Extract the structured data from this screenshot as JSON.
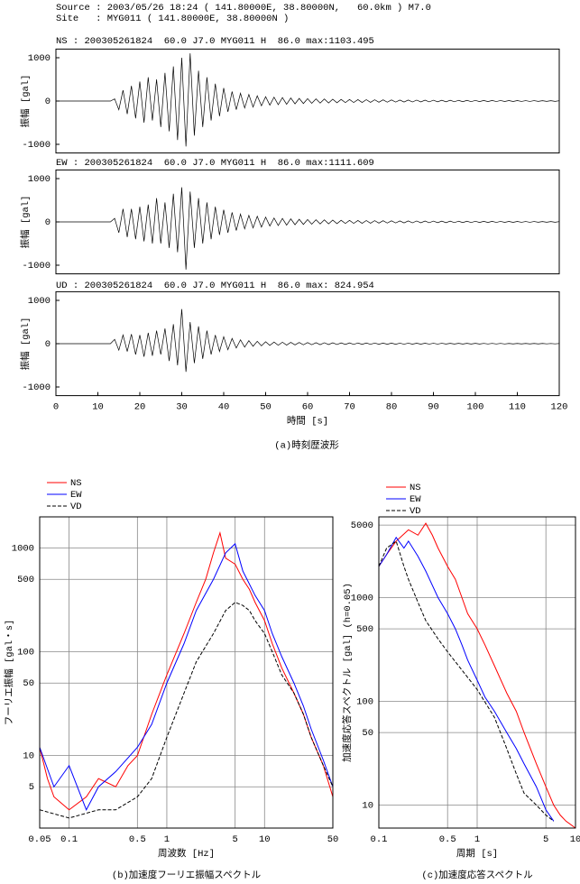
{
  "chart_data": [
    {
      "type": "line",
      "subtitles": [
        "Source : 2003/05/26 18:24 ( 141.80000E, 38.80000N,   60.0km ) M7.0",
        "Site   : MYG011 ( 141.80000E, 38.80000N )"
      ],
      "title": "NS : 200305261824  60.0 J7.0 MYG011 H  86.0 max:1103.495",
      "ylabel": "振幅 [gal]",
      "xlim": [
        0,
        120
      ],
      "ylim": [
        -1200,
        1200
      ],
      "yticks": [
        1000,
        0,
        -1000
      ],
      "x": [
        0,
        1,
        2,
        3,
        4,
        5,
        6,
        7,
        8,
        9,
        10,
        11,
        12,
        13,
        14,
        15,
        16,
        17,
        18,
        19,
        20,
        21,
        22,
        23,
        24,
        25,
        26,
        27,
        28,
        29,
        30,
        31,
        32,
        33,
        34,
        35,
        36,
        37,
        38,
        39,
        40,
        41,
        42,
        43,
        44,
        45,
        46,
        47,
        48,
        49,
        50,
        51,
        52,
        53,
        54,
        55,
        56,
        57,
        58,
        59,
        60,
        61,
        62,
        63,
        64,
        65,
        66,
        67,
        68,
        69,
        70,
        71,
        72,
        73,
        74,
        75,
        76,
        77,
        78,
        79,
        80,
        81,
        82,
        83,
        84,
        85,
        86,
        87,
        88,
        89,
        90,
        91,
        92,
        93,
        94,
        95,
        96,
        97,
        98,
        99,
        100,
        101,
        102,
        103,
        104,
        105,
        106,
        107,
        108,
        109,
        110,
        111,
        112,
        113,
        114,
        115,
        116,
        117,
        118,
        119,
        120
      ],
      "series": [
        {
          "color": "#000000",
          "values": [
            0,
            0,
            0,
            0,
            0,
            0,
            0,
            0,
            0,
            0,
            0,
            0,
            0,
            0,
            50,
            -200,
            250,
            -300,
            350,
            -400,
            450,
            -500,
            550,
            -450,
            500,
            -600,
            650,
            -700,
            800,
            -900,
            1000,
            -1050,
            1100,
            -800,
            700,
            -600,
            550,
            -450,
            400,
            -350,
            300,
            -250,
            220,
            -200,
            180,
            -160,
            150,
            -140,
            120,
            -110,
            100,
            -95,
            90,
            -85,
            80,
            -75,
            70,
            -65,
            60,
            -58,
            55,
            -52,
            50,
            -48,
            46,
            -44,
            42,
            -40,
            38,
            -36,
            35,
            -34,
            33,
            -32,
            31,
            -30,
            29,
            -28,
            27,
            -26,
            25,
            -24,
            23,
            -22,
            22,
            -21,
            21,
            -20,
            20,
            -19,
            19,
            -18,
            18,
            -17,
            17,
            -16,
            16,
            -15,
            15,
            -14,
            14,
            -13,
            13,
            -12,
            12,
            -11,
            11,
            -10,
            10,
            -10,
            10,
            -9,
            9,
            -9,
            9,
            -8,
            8,
            -8,
            8,
            -7,
            7
          ]
        }
      ]
    },
    {
      "type": "line",
      "title": "EW : 200305261824  60.0 J7.0 MYG011 H  86.0 max:1111.609",
      "ylabel": "振幅 [gal]",
      "xlim": [
        0,
        120
      ],
      "ylim": [
        -1200,
        1200
      ],
      "yticks": [
        1000,
        0,
        -1000
      ],
      "x": [
        0,
        1,
        2,
        3,
        4,
        5,
        6,
        7,
        8,
        9,
        10,
        11,
        12,
        13,
        14,
        15,
        16,
        17,
        18,
        19,
        20,
        21,
        22,
        23,
        24,
        25,
        26,
        27,
        28,
        29,
        30,
        31,
        32,
        33,
        34,
        35,
        36,
        37,
        38,
        39,
        40,
        41,
        42,
        43,
        44,
        45,
        46,
        47,
        48,
        49,
        50,
        51,
        52,
        53,
        54,
        55,
        56,
        57,
        58,
        59,
        60,
        61,
        62,
        63,
        64,
        65,
        66,
        67,
        68,
        69,
        70,
        71,
        72,
        73,
        74,
        75,
        76,
        77,
        78,
        79,
        80,
        81,
        82,
        83,
        84,
        85,
        86,
        87,
        88,
        89,
        90,
        91,
        92,
        93,
        94,
        95,
        96,
        97,
        98,
        99,
        100,
        101,
        102,
        103,
        104,
        105,
        106,
        107,
        108,
        109,
        110,
        111,
        112,
        113,
        114,
        115,
        116,
        117,
        118,
        119,
        120
      ],
      "series": [
        {
          "color": "#000000",
          "values": [
            0,
            0,
            0,
            0,
            0,
            0,
            0,
            0,
            0,
            0,
            0,
            0,
            0,
            0,
            80,
            -250,
            300,
            -350,
            300,
            -400,
            350,
            -450,
            400,
            -500,
            550,
            -500,
            450,
            -600,
            650,
            -700,
            800,
            -1100,
            700,
            -600,
            550,
            -500,
            450,
            -400,
            350,
            -300,
            280,
            -250,
            220,
            -200,
            180,
            -160,
            150,
            -140,
            130,
            -120,
            110,
            -95,
            90,
            -85,
            80,
            -75,
            70,
            -65,
            60,
            -58,
            55,
            -52,
            50,
            -48,
            46,
            -44,
            42,
            -40,
            38,
            -36,
            35,
            -34,
            33,
            -32,
            31,
            -30,
            29,
            -28,
            27,
            -26,
            25,
            -24,
            23,
            -22,
            22,
            -21,
            21,
            -20,
            20,
            -19,
            19,
            -18,
            18,
            -17,
            17,
            -16,
            16,
            -15,
            15,
            -14,
            14,
            -13,
            13,
            -12,
            12,
            -11,
            11,
            -10,
            10,
            -10,
            10,
            -9,
            9,
            -9,
            9,
            -8,
            8,
            -8,
            8,
            -7,
            7
          ]
        }
      ]
    },
    {
      "type": "line",
      "title": "UD : 200305261824  60.0 J7.0 MYG011 H  86.0 max: 824.954",
      "ylabel": "振幅 [gal]",
      "xlabel": "時間 [s]",
      "caption": "(a)時刻歴波形",
      "xlim": [
        0,
        120
      ],
      "ylim": [
        -1200,
        1200
      ],
      "yticks": [
        1000,
        0,
        -1000
      ],
      "xticks": [
        0,
        10,
        20,
        30,
        40,
        50,
        60,
        70,
        80,
        90,
        100,
        110,
        120
      ],
      "x": [
        0,
        1,
        2,
        3,
        4,
        5,
        6,
        7,
        8,
        9,
        10,
        11,
        12,
        13,
        14,
        15,
        16,
        17,
        18,
        19,
        20,
        21,
        22,
        23,
        24,
        25,
        26,
        27,
        28,
        29,
        30,
        31,
        32,
        33,
        34,
        35,
        36,
        37,
        38,
        39,
        40,
        41,
        42,
        43,
        44,
        45,
        46,
        47,
        48,
        49,
        50,
        51,
        52,
        53,
        54,
        55,
        56,
        57,
        58,
        59,
        60,
        61,
        62,
        63,
        64,
        65,
        66,
        67,
        68,
        69,
        70,
        71,
        72,
        73,
        74,
        75,
        76,
        77,
        78,
        79,
        80,
        81,
        82,
        83,
        84,
        85,
        86,
        87,
        88,
        89,
        90,
        91,
        92,
        93,
        94,
        95,
        96,
        97,
        98,
        99,
        100,
        101,
        102,
        103,
        104,
        105,
        106,
        107,
        108,
        109,
        110,
        111,
        112,
        113,
        114,
        115,
        116,
        117,
        118,
        119,
        120
      ],
      "series": [
        {
          "color": "#000000",
          "values": [
            0,
            0,
            0,
            0,
            0,
            0,
            0,
            0,
            0,
            0,
            0,
            0,
            0,
            0,
            100,
            -150,
            200,
            -180,
            220,
            -250,
            200,
            -300,
            250,
            -280,
            300,
            -250,
            350,
            -400,
            450,
            -500,
            800,
            -650,
            500,
            -450,
            400,
            -350,
            300,
            -250,
            200,
            -180,
            160,
            -140,
            120,
            -100,
            90,
            -80,
            70,
            -60,
            55,
            -50,
            45,
            -40,
            38,
            -36,
            34,
            -32,
            30,
            -28,
            27,
            -26,
            25,
            -24,
            23,
            -22,
            21,
            -20,
            20,
            -19,
            18,
            -18,
            17,
            -16,
            16,
            -15,
            15,
            -14,
            14,
            -13,
            13,
            -12,
            12,
            -12,
            11,
            -11,
            11,
            -10,
            10,
            -10,
            10,
            -9,
            9,
            -9,
            9,
            -8,
            8,
            -8,
            8,
            -7,
            7,
            -7,
            7,
            -7,
            6,
            -6,
            6,
            -6,
            6,
            -6,
            5,
            -5,
            5,
            -5,
            5,
            -5,
            5,
            -5,
            5,
            -4,
            4,
            -4,
            4
          ]
        }
      ]
    },
    {
      "type": "line",
      "log_x": true,
      "log_y": true,
      "grid": true,
      "ylabel": "フーリエ振幅 [gal・s]",
      "xlabel": "周波数 [Hz]",
      "caption": "(b)加速度フーリエ振幅スペクトル",
      "xlim": [
        0.05,
        50
      ],
      "ylim": [
        2,
        2000
      ],
      "xticks": [
        0.05,
        0.1,
        0.5,
        1,
        5,
        10,
        50
      ],
      "yticks": [
        5,
        10,
        50,
        100,
        500,
        1000
      ],
      "series": [
        {
          "name": "NS",
          "color": "#ff0000",
          "x": [
            0.05,
            0.06,
            0.07,
            0.1,
            0.15,
            0.2,
            0.3,
            0.4,
            0.5,
            0.7,
            1,
            1.5,
            2,
            2.5,
            3,
            3.5,
            4,
            5,
            6,
            7,
            8,
            10,
            12,
            15,
            20,
            25,
            30,
            40,
            50
          ],
          "values": [
            12,
            6,
            4,
            3,
            4,
            6,
            5,
            8,
            10,
            25,
            60,
            150,
            300,
            500,
            900,
            1400,
            800,
            700,
            500,
            400,
            300,
            200,
            120,
            70,
            40,
            25,
            15,
            8,
            4
          ]
        },
        {
          "name": "EW",
          "color": "#0000ff",
          "x": [
            0.05,
            0.07,
            0.1,
            0.15,
            0.2,
            0.3,
            0.5,
            0.7,
            1,
            1.5,
            2,
            3,
            4,
            5,
            6,
            7,
            8,
            10,
            12,
            15,
            20,
            25,
            30,
            40,
            50
          ],
          "values": [
            12,
            5,
            8,
            3,
            5,
            7,
            12,
            20,
            50,
            120,
            250,
            500,
            900,
            1100,
            600,
            450,
            350,
            250,
            150,
            90,
            50,
            30,
            18,
            9,
            5
          ]
        },
        {
          "name": "VD",
          "color": "#000000",
          "dashed": true,
          "x": [
            0.05,
            0.1,
            0.2,
            0.3,
            0.5,
            0.7,
            1,
            1.5,
            2,
            3,
            4,
            5,
            6,
            7,
            8,
            10,
            12,
            15,
            20,
            25,
            30,
            40,
            50
          ],
          "values": [
            3,
            2.5,
            3,
            3,
            4,
            6,
            15,
            40,
            80,
            150,
            250,
            300,
            280,
            250,
            200,
            150,
            100,
            60,
            40,
            25,
            15,
            8,
            5
          ]
        }
      ]
    },
    {
      "type": "line",
      "log_x": true,
      "log_y": true,
      "grid": true,
      "ylabel": "加速度応答スペクトル [gal] (h=0.05)",
      "xlabel": "周期 [s]",
      "caption": "(c)加速度応答スペクトル",
      "xlim": [
        0.1,
        10
      ],
      "ylim": [
        6,
        6000
      ],
      "xticks": [
        0.1,
        0.5,
        1,
        5,
        10
      ],
      "yticks": [
        10,
        50,
        100,
        500,
        1000,
        5000
      ],
      "series": [
        {
          "name": "NS",
          "color": "#ff0000",
          "x": [
            0.1,
            0.12,
            0.15,
            0.2,
            0.25,
            0.3,
            0.35,
            0.4,
            0.5,
            0.6,
            0.7,
            0.8,
            1,
            1.2,
            1.5,
            2,
            2.5,
            3,
            4,
            5,
            6,
            7,
            8,
            10
          ],
          "values": [
            2000,
            2600,
            3500,
            4500,
            4000,
            5200,
            4000,
            3000,
            2000,
            1500,
            1000,
            700,
            500,
            350,
            220,
            120,
            80,
            50,
            25,
            15,
            10,
            8,
            7,
            6
          ]
        },
        {
          "name": "EW",
          "color": "#0000ff",
          "x": [
            0.1,
            0.12,
            0.15,
            0.18,
            0.2,
            0.25,
            0.3,
            0.4,
            0.5,
            0.6,
            0.7,
            0.8,
            1,
            1.2,
            1.5,
            2,
            2.5,
            3,
            4,
            5,
            6
          ],
          "values": [
            2000,
            2600,
            3800,
            3000,
            3500,
            2500,
            1800,
            1000,
            700,
            500,
            350,
            250,
            160,
            110,
            80,
            50,
            35,
            25,
            15,
            9,
            7
          ]
        },
        {
          "name": "VD",
          "color": "#000000",
          "dashed": true,
          "x": [
            0.1,
            0.12,
            0.15,
            0.18,
            0.2,
            0.25,
            0.3,
            0.4,
            0.5,
            0.7,
            1,
            1.5,
            2,
            2.5,
            3,
            4,
            5,
            6
          ],
          "values": [
            2000,
            3000,
            3500,
            2000,
            1500,
            900,
            600,
            400,
            300,
            200,
            130,
            70,
            35,
            20,
            13,
            10,
            8,
            7
          ]
        }
      ]
    }
  ]
}
